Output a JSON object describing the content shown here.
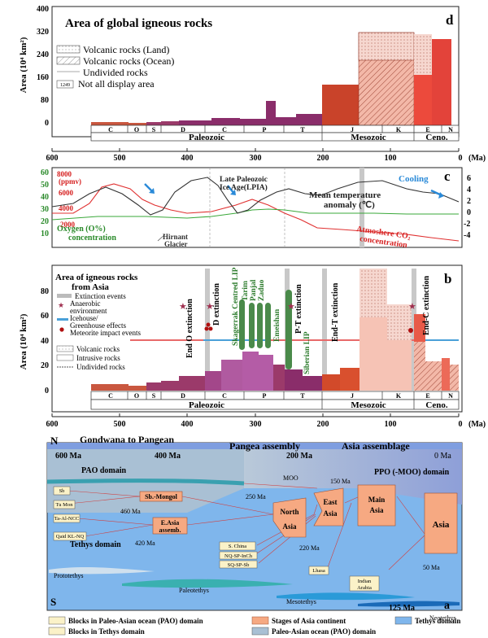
{
  "panel_d": {
    "letter": "d",
    "title": "Area of global igneous rocks",
    "ylabel": "Area (10⁴ km²)",
    "yticks": [
      "400",
      "320",
      "240",
      "160",
      "80",
      "0"
    ],
    "legend": [
      "Volcanic rocks (Land)",
      "Volcanic rocks (Ocean)",
      "Undivided rocks",
      "Not all display area"
    ],
    "legend_badge": "1249",
    "periods": [
      "C",
      "O",
      "S",
      "D",
      "C",
      "P",
      "T",
      "J",
      "K",
      "E",
      "N"
    ],
    "eras": [
      "Paleozoic",
      "Mesozoic",
      "Ceno."
    ]
  },
  "panel_c": {
    "letter": "c",
    "yleft_ticks": [
      "60",
      "50",
      "40",
      "30",
      "20",
      "10"
    ],
    "yright_ticks": [
      "6",
      "4",
      "2",
      "0",
      "-2",
      "-4"
    ],
    "co2_labels": [
      "8000",
      "(ppmv)",
      "6000",
      "4000",
      "2000"
    ],
    "oxygen_label": [
      "Oxygen (O%)",
      "concentration"
    ],
    "glacier_label": [
      "Hirnant",
      "Glacier"
    ],
    "lpia_label": [
      "Late Paleozoic",
      "Ice Age(LPIA)"
    ],
    "temp_label": [
      "Mean temperature",
      "anomaly (℃)"
    ],
    "co2_label": [
      "Atmoshere CO₂",
      "concentration"
    ],
    "cooling_label": "Cooling"
  },
  "panel_b": {
    "letter": "b",
    "title": [
      "Area of igneous rocks",
      "from Asia"
    ],
    "ylabel": "Area (10⁴ km²)",
    "yticks": [
      "80",
      "60",
      "40",
      "20",
      "0"
    ],
    "legend": [
      "Extinction events",
      "Anaerobic",
      "environment",
      "Icehouse/",
      "Greenhouse effects",
      "Meteorite impact events"
    ],
    "legend2": [
      "Volcanic rocks",
      "Intrusive rocks",
      "Undivided rocks"
    ],
    "extinctions": [
      "End O extinction",
      "D extinction",
      "P-T extinction",
      "End-T extinction",
      "End-C extinction"
    ],
    "lips": [
      "Skagerrak Centred LIP",
      "Tarim",
      "Panjal",
      "Zaduo",
      "Emeishan",
      "Siberian LIP"
    ],
    "periods": [
      "C",
      "O",
      "S",
      "D",
      "C",
      "P",
      "T",
      "J",
      "K",
      "E",
      "N"
    ],
    "eras": [
      "Paleozoic",
      "Mesozoic",
      "Ceno."
    ]
  },
  "axis": {
    "ticks": [
      "600",
      "500",
      "400",
      "300",
      "200",
      "100",
      "0"
    ],
    "unit": "(Ma)"
  },
  "panel_a": {
    "letter": "a",
    "N": "N",
    "S": "S",
    "headers": [
      "Gondwana to Pangean",
      "Pangea assembly",
      "Asia assemblage"
    ],
    "times": [
      "600 Ma",
      "400 Ma",
      "200 Ma",
      "0 Ma"
    ],
    "pao": "PAO  domain",
    "ppo": "PPO (-MOO) domain",
    "moo": "MOO",
    "tethys": "Tethys domain",
    "prototethys": "Prototethys",
    "paleotethys": "Paleotethys",
    "mesotethys": "Mesotethys",
    "neotethys": "Neotethys",
    "ages": [
      "150 Ma",
      "250 Ma",
      "460 Ma",
      "420 Ma",
      "220 Ma",
      "50 Ma",
      "125 Ma"
    ],
    "blocks_pao": [
      "Sb",
      "Tu Mon",
      "Ta-Al-NCC",
      "Qaid KL-NQ"
    ],
    "blocks_tethys": [
      "S. China",
      "NQ-SP-InCh",
      "SQ-SP-Sb",
      "Lhasa",
      "Indian",
      "Arabia"
    ],
    "stages": [
      "Sb.-Mongol",
      "E.Asia",
      "assemb.",
      "North",
      "Asia",
      "East",
      "Asia",
      "Main",
      "Asia",
      "Asia"
    ],
    "legend": [
      "Blocks in Paleo-Asian ocean (PAO) domain",
      "Stages of Asia continent",
      "Tethys domain",
      "Blocks in Tethys domain",
      "Paleo-Asian ocean (PAO) domain"
    ]
  }
}
